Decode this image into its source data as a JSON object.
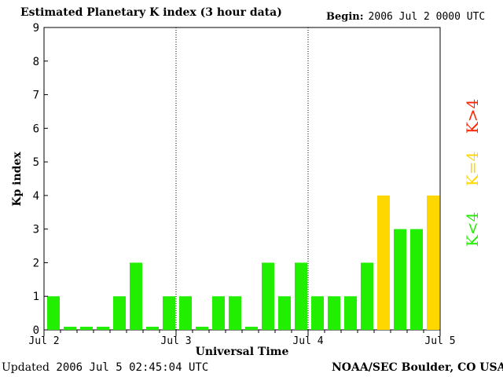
{
  "header": {
    "title": "Estimated Planetary K index (3 hour data)",
    "begin_label": "Begin:",
    "begin_value": "2006 Jul 2 0000 UTC"
  },
  "footer": {
    "updated_label": "Updated",
    "updated_value": "2006 Jul  5 02:45:04 UTC",
    "credit": "NOAA/SEC Boulder, CO USA"
  },
  "colors": {
    "low": "#22ee00",
    "storm_threshold": "#ffd700",
    "high": "#ff2200",
    "axis": "#000000"
  },
  "legend": [
    {
      "label": "K<4",
      "color": "#22ee00"
    },
    {
      "label": "K=4",
      "color": "#ffd700"
    },
    {
      "label": "K>4",
      "color": "#ff2200"
    }
  ],
  "chart_data": {
    "type": "bar",
    "title": "Estimated Planetary K index (3 hour data)",
    "xlabel": "Universal Time",
    "ylabel": "Kp index",
    "ylim": [
      0,
      9
    ],
    "yticks": [
      0,
      1,
      2,
      3,
      4,
      5,
      6,
      7,
      8,
      9
    ],
    "xticks": [
      "Jul 2",
      "Jul 3",
      "Jul 4",
      "Jul 5"
    ],
    "interval_hours": 3,
    "grid": false,
    "day_separators": true,
    "legend_placement": "right",
    "values": [
      1,
      0,
      0,
      0,
      1,
      2,
      0,
      1,
      1,
      0,
      1,
      1,
      0,
      2,
      1,
      2,
      1,
      1,
      1,
      2,
      4,
      3,
      3,
      4
    ]
  }
}
